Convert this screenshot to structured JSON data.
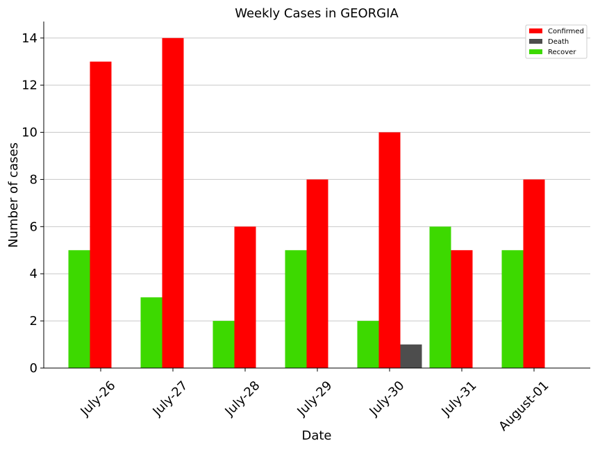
{
  "chart_data": {
    "type": "bar",
    "title": "Weekly Cases in GEORGIA",
    "xlabel": "Date",
    "ylabel": "Number of cases",
    "categories": [
      "July-26",
      "July-27",
      "July-28",
      "July-29",
      "July-30",
      "July-31",
      "August-01"
    ],
    "series": [
      {
        "name": "Confirmed",
        "color": "#ff0000",
        "values": [
          13,
          14,
          6,
          8,
          10,
          5,
          8
        ]
      },
      {
        "name": "Death",
        "color": "#4d4d4d",
        "values": [
          0,
          0,
          0,
          0,
          1,
          0,
          0
        ]
      },
      {
        "name": "Recover",
        "color": "#3dd900",
        "values": [
          5,
          3,
          2,
          5,
          2,
          6,
          5
        ]
      }
    ],
    "ylim": [
      0,
      14.7
    ],
    "yticks": [
      0,
      2,
      4,
      6,
      8,
      10,
      12,
      14
    ],
    "grid": "horizontal",
    "legend_position": "top-right"
  }
}
